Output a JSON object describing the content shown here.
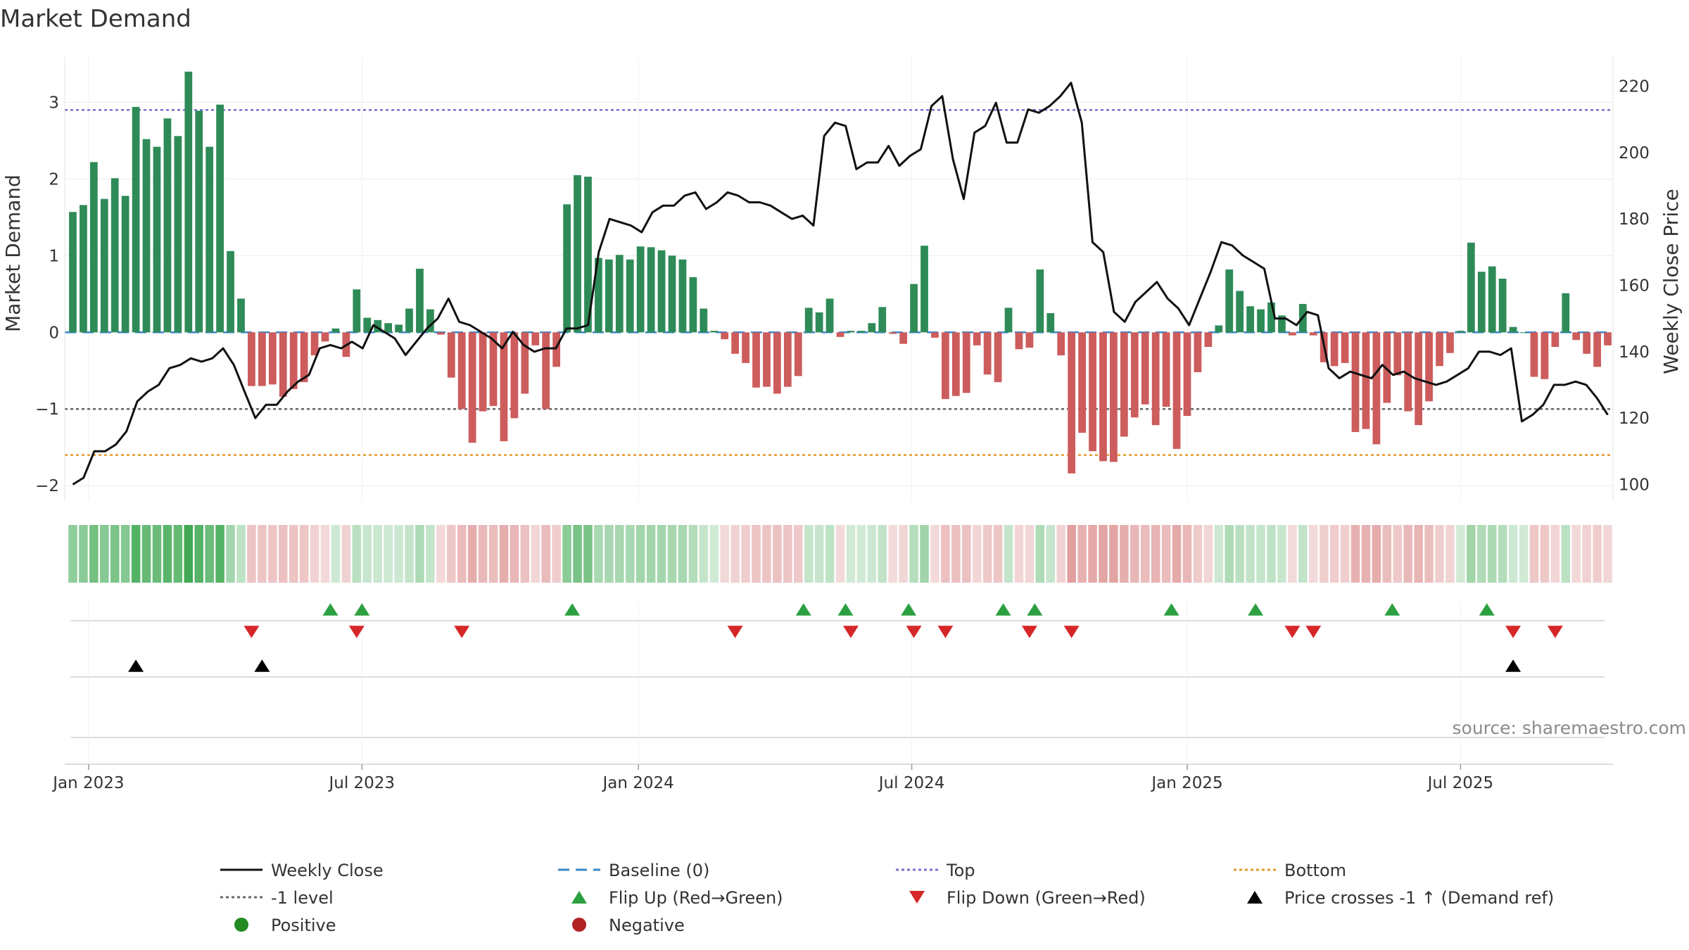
{
  "chart_data": {
    "type": "bar",
    "title": "Market Demand",
    "ylabel_left": "Market Demand",
    "ylabel_right": "Weekly Close Price",
    "source": "source: sharemaestro.com",
    "left_ylim": [
      -2.2,
      3.6
    ],
    "left_yticks": [
      -2,
      -1,
      0,
      1,
      2,
      3
    ],
    "left_ytick_labels": [
      "−2",
      "−1",
      "0",
      "1",
      "2",
      "3"
    ],
    "right_ylim": [
      95,
      229
    ],
    "right_yticks": [
      100,
      120,
      140,
      160,
      180,
      200,
      220
    ],
    "right_ytick_labels": [
      "100",
      "120",
      "140",
      "160",
      "180",
      "200",
      "220"
    ],
    "reference_lines": {
      "top": 2.9,
      "bottom": -1.6,
      "minus_one": -1,
      "baseline": 0
    },
    "x_ticks": [
      {
        "label": "Jan 2023",
        "week": 1.5
      },
      {
        "label": "Jul 2023",
        "week": 27.5
      },
      {
        "label": "Jan 2024",
        "week": 53.8
      },
      {
        "label": "Jul 2024",
        "week": 79.8
      },
      {
        "label": "Jan 2025",
        "week": 106
      },
      {
        "label": "Jul 2025",
        "week": 132
      }
    ],
    "demand": [
      1.57,
      1.66,
      2.22,
      1.74,
      2.01,
      1.78,
      2.94,
      2.52,
      2.42,
      2.79,
      2.56,
      3.4,
      2.89,
      2.42,
      2.97,
      1.06,
      0.44,
      -0.7,
      -0.7,
      -0.68,
      -0.84,
      -0.74,
      -0.65,
      -0.3,
      -0.12,
      0.05,
      -0.32,
      0.56,
      0.19,
      0.16,
      0.12,
      0.1,
      0.31,
      0.83,
      0.3,
      -0.03,
      -0.59,
      -1.0,
      -1.44,
      -1.03,
      -0.96,
      -1.42,
      -1.12,
      -0.8,
      -0.17,
      -1.0,
      -0.45,
      1.67,
      2.05,
      2.03,
      0.97,
      0.95,
      1.01,
      0.95,
      1.12,
      1.11,
      1.07,
      1.0,
      0.95,
      0.72,
      0.31,
      0.02,
      -0.09,
      -0.28,
      -0.4,
      -0.72,
      -0.71,
      -0.8,
      -0.71,
      -0.57,
      0.32,
      0.26,
      0.44,
      -0.06,
      0.02,
      0.02,
      0.12,
      0.33,
      -0.02,
      -0.15,
      0.63,
      1.13,
      -0.07,
      -0.87,
      -0.83,
      -0.79,
      -0.17,
      -0.55,
      -0.65,
      0.32,
      -0.22,
      -0.2,
      0.82,
      0.25,
      -0.3,
      -1.84,
      -1.31,
      -1.55,
      -1.68,
      -1.69,
      -1.36,
      -1.11,
      -0.94,
      -1.21,
      -0.97,
      -1.52,
      -1.09,
      -0.52,
      -0.19,
      0.09,
      0.82,
      0.54,
      0.34,
      0.3,
      0.39,
      0.22,
      -0.04,
      0.37,
      -0.04,
      -0.39,
      -0.44,
      -0.4,
      -1.3,
      -1.26,
      -1.46,
      -0.92,
      -0.56,
      -1.03,
      -1.21,
      -0.9,
      -0.44,
      -0.27,
      0.02,
      1.17,
      0.79,
      0.86,
      0.7,
      0.07,
      0.0,
      -0.58,
      -0.61,
      -0.19,
      0.51,
      -0.1,
      -0.28,
      -0.45,
      -0.17
    ],
    "price": [
      100,
      102,
      110,
      110,
      112,
      116,
      125,
      128,
      130,
      135,
      136,
      138,
      137,
      138,
      141,
      136,
      128,
      120,
      124,
      124,
      128,
      131,
      133,
      141,
      142,
      141,
      143,
      141,
      148,
      146,
      144,
      139,
      143,
      147,
      150,
      156,
      149,
      148,
      146,
      144,
      141,
      146,
      142,
      140,
      141,
      141,
      147,
      147,
      148,
      170,
      180,
      179,
      178,
      176,
      182,
      184,
      184,
      187,
      188,
      183,
      185,
      188,
      187,
      185,
      185,
      184,
      182,
      180,
      181,
      178,
      205,
      209,
      208,
      195,
      197,
      197,
      202,
      196,
      199,
      201,
      214,
      217,
      198,
      186,
      206,
      208,
      215,
      203,
      203,
      213,
      212,
      214,
      217,
      221,
      209,
      173,
      170,
      152,
      149,
      155,
      158,
      161,
      156,
      153,
      148,
      156,
      164,
      173,
      172,
      169,
      167,
      165,
      150,
      150,
      148,
      152,
      151,
      135,
      132,
      134,
      133,
      132,
      136,
      133,
      134,
      132,
      131,
      130,
      131,
      133,
      135,
      140,
      140,
      139,
      141,
      119,
      121,
      124,
      130,
      130,
      131,
      130,
      126,
      121
    ],
    "flip_up_weeks": [
      24.5,
      27.5,
      47.5,
      69.5,
      73.5,
      79.5,
      88.5,
      91.5,
      104.5,
      112.5,
      125.5,
      134.5
    ],
    "flip_down_weeks": [
      17,
      27,
      37,
      63,
      74,
      80,
      83,
      91,
      95,
      116,
      118,
      137,
      141
    ],
    "price_cross_weeks": [
      6,
      18,
      137
    ],
    "legend": [
      {
        "key": "weekly_close",
        "label": "Weekly Close",
        "type": "line-solid",
        "color": "#111111"
      },
      {
        "key": "baseline",
        "label": "Baseline (0)",
        "type": "line-dash",
        "color": "#3a86c8"
      },
      {
        "key": "top",
        "label": "Top",
        "type": "line-dot",
        "color": "#7b6fd0"
      },
      {
        "key": "bottom",
        "label": "Bottom",
        "type": "line-dot",
        "color": "#e29a2d"
      },
      {
        "key": "minus_one",
        "label": "-1 level",
        "type": "line-dot",
        "color": "#666666"
      },
      {
        "key": "flip_up",
        "label": "Flip Up (Red→Green)",
        "type": "tri-up",
        "color": "#2ca041"
      },
      {
        "key": "flip_down",
        "label": "Flip Down (Green→Red)",
        "type": "tri-down",
        "color": "#d62728"
      },
      {
        "key": "price_cross",
        "label": "Price crosses -1 ↑ (Demand ref)",
        "type": "tri-up",
        "color": "#000000"
      },
      {
        "key": "positive",
        "label": "Positive",
        "type": "circle",
        "color": "#228b22"
      },
      {
        "key": "negative",
        "label": "Negative",
        "type": "circle",
        "color": "#b22222"
      }
    ],
    "colors": {
      "positive_bar": "#2e8b57",
      "negative_bar": "#cd5c5c",
      "price_line": "#111111"
    }
  }
}
